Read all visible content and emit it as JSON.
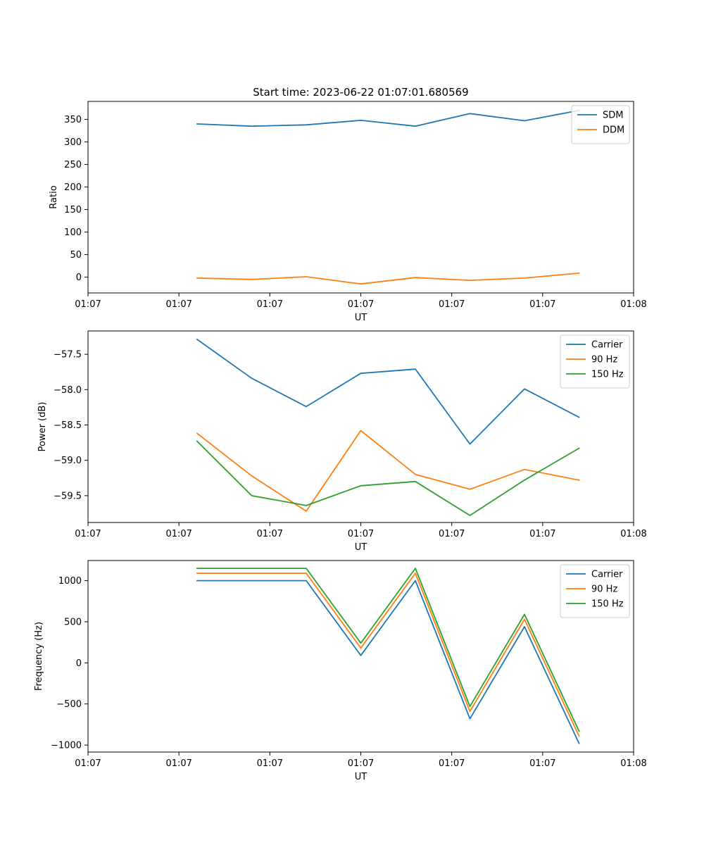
{
  "colors": {
    "blue": "#1f77b4",
    "orange": "#ff7f0e",
    "green": "#2ca02c"
  },
  "chart_data": [
    {
      "type": "line",
      "title": "Start time: 2023-06-22 01:07:01.680569",
      "xlabel": "UT",
      "ylabel": "Ratio",
      "x": [
        2,
        3,
        4,
        5,
        6,
        7,
        8,
        9
      ],
      "x_tick_values": [
        0,
        1.667,
        3.333,
        5,
        6.667,
        8.333,
        10
      ],
      "x_tick_labels": [
        "01:07",
        "01:07",
        "01:07",
        "01:07",
        "01:07",
        "01:07",
        "01:08"
      ],
      "xlim": [
        0,
        10
      ],
      "ylim": [
        -35,
        390
      ],
      "y_ticks": [
        0,
        50,
        100,
        150,
        200,
        250,
        300,
        350
      ],
      "y_tick_labels": [
        "0",
        "50",
        "100",
        "150",
        "200",
        "250",
        "300",
        "350"
      ],
      "legend_position": "top-right",
      "series": [
        {
          "name": "SDM",
          "color": "#1f77b4",
          "values": [
            340,
            335,
            338,
            348,
            335,
            363,
            347,
            370
          ]
        },
        {
          "name": "DDM",
          "color": "#ff7f0e",
          "values": [
            -2,
            -5,
            1,
            -15,
            -1,
            -7,
            -2,
            9
          ]
        }
      ]
    },
    {
      "type": "line",
      "title": "",
      "xlabel": "UT",
      "ylabel": "Power (dB)",
      "x": [
        2,
        3,
        4,
        5,
        6,
        7,
        8,
        9
      ],
      "x_tick_values": [
        0,
        1.667,
        3.333,
        5,
        6.667,
        8.333,
        10
      ],
      "x_tick_labels": [
        "01:07",
        "01:07",
        "01:07",
        "01:07",
        "01:07",
        "01:07",
        "01:08"
      ],
      "xlim": [
        0,
        10
      ],
      "ylim": [
        -59.88,
        -57.17
      ],
      "y_ticks": [
        -59.5,
        -59.0,
        -58.5,
        -58.0,
        -57.5
      ],
      "y_tick_labels": [
        "−59.5",
        "−59.0",
        "−58.5",
        "−58.0",
        "−57.5"
      ],
      "legend_position": "top-right",
      "series": [
        {
          "name": "Carrier",
          "color": "#1f77b4",
          "values": [
            -57.29,
            -57.84,
            -58.24,
            -57.77,
            -57.71,
            -58.77,
            -57.99,
            -58.39
          ]
        },
        {
          "name": "90 Hz",
          "color": "#ff7f0e",
          "values": [
            -58.62,
            -59.22,
            -59.72,
            -58.58,
            -59.2,
            -59.41,
            -59.13,
            -59.28
          ]
        },
        {
          "name": "150 Hz",
          "color": "#2ca02c",
          "values": [
            -58.73,
            -59.5,
            -59.64,
            -59.36,
            -59.3,
            -59.78,
            -59.28,
            -58.83
          ]
        }
      ]
    },
    {
      "type": "line",
      "title": "",
      "xlabel": "UT",
      "ylabel": "Frequency (Hz)",
      "x": [
        2,
        3,
        4,
        5,
        6,
        7,
        8,
        9
      ],
      "x_tick_values": [
        0,
        1.667,
        3.333,
        5,
        6.667,
        8.333,
        10
      ],
      "x_tick_labels": [
        "01:07",
        "01:07",
        "01:07",
        "01:07",
        "01:07",
        "01:07",
        "01:08"
      ],
      "xlim": [
        0,
        10
      ],
      "ylim": [
        -1085,
        1245
      ],
      "y_ticks": [
        -1000,
        -500,
        0,
        500,
        1000
      ],
      "y_tick_labels": [
        "−1000",
        "−500",
        "0",
        "500",
        "1000"
      ],
      "legend_position": "top-right",
      "series": [
        {
          "name": "Carrier",
          "color": "#1f77b4",
          "values": [
            1000,
            1000,
            1000,
            90,
            1000,
            -680,
            440,
            -980
          ]
        },
        {
          "name": "90 Hz",
          "color": "#ff7f0e",
          "values": [
            1090,
            1090,
            1090,
            180,
            1090,
            -590,
            530,
            -890
          ]
        },
        {
          "name": "150 Hz",
          "color": "#2ca02c",
          "values": [
            1150,
            1150,
            1150,
            240,
            1150,
            -530,
            590,
            -830
          ]
        }
      ]
    }
  ]
}
